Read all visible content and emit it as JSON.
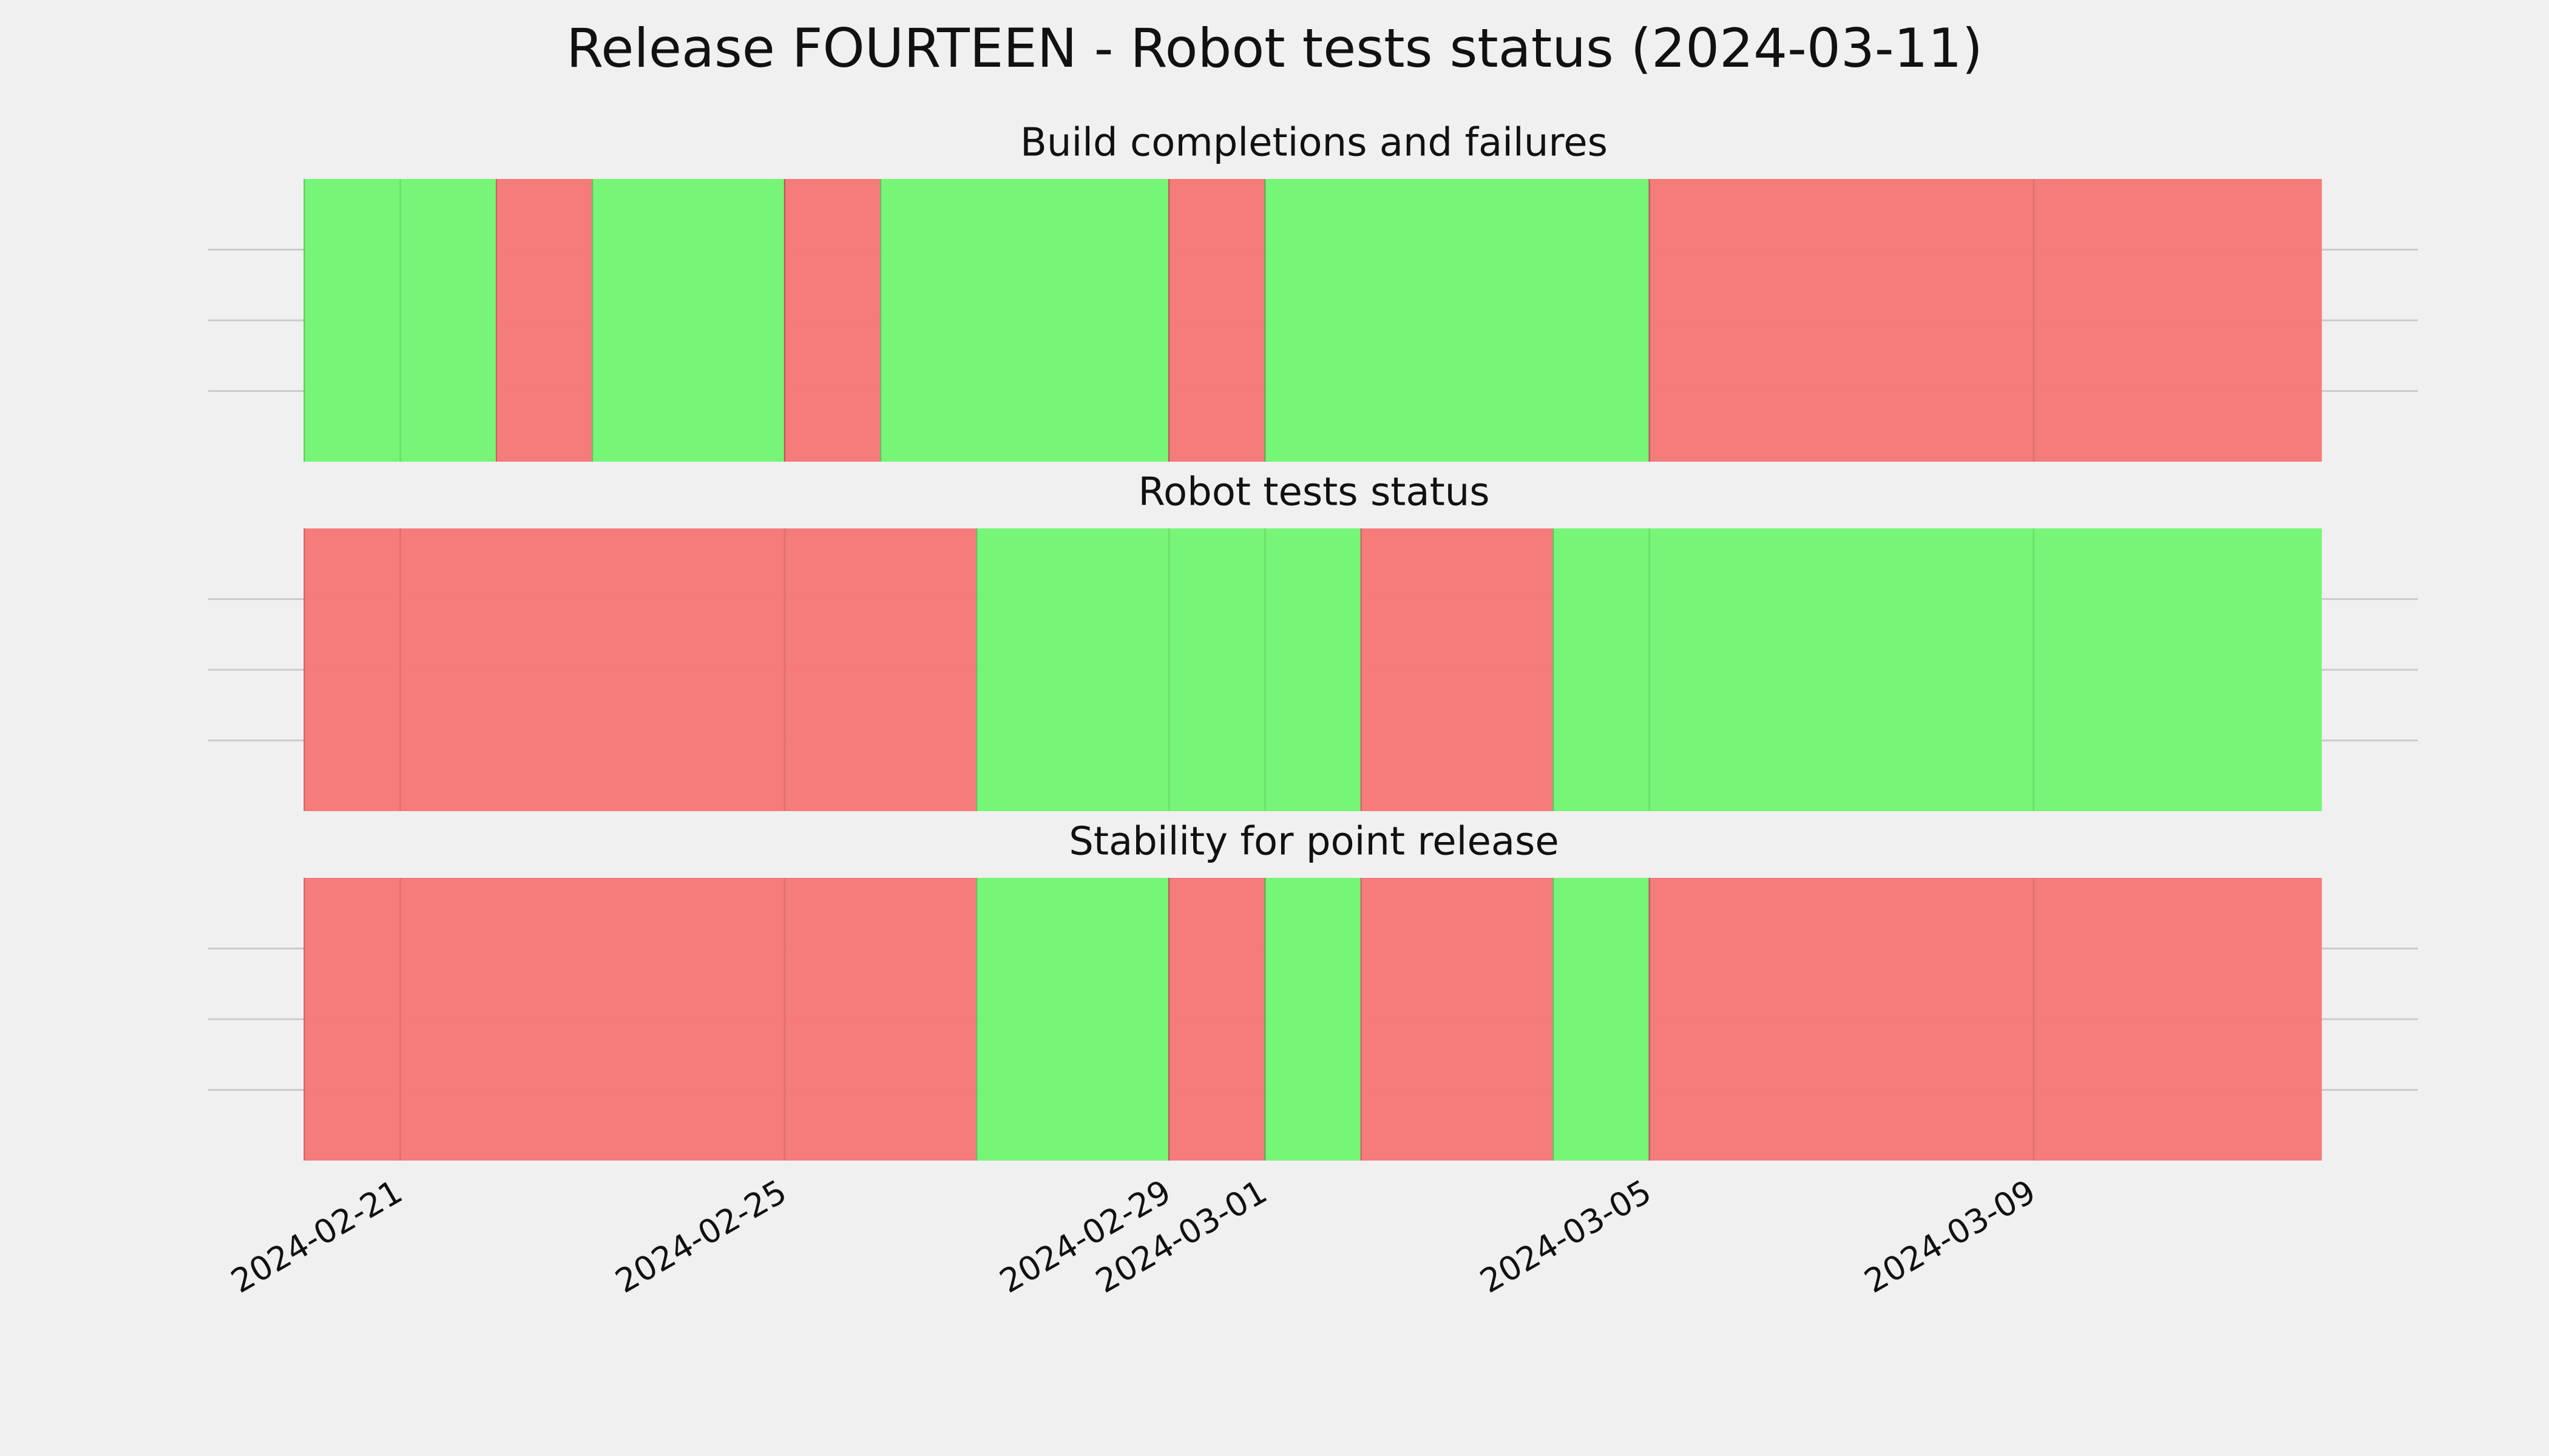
{
  "title": "Release FOURTEEN - Robot tests status (2024-03-11)",
  "chart_data": [
    {
      "type": "timeline",
      "title": "Build completions and failures",
      "x": [
        "2024-02-20",
        "2024-02-22",
        "2024-02-23",
        "2024-02-25",
        "2024-02-26",
        "2024-02-29",
        "2024-03-01",
        "2024-03-05",
        "2024-03-12"
      ],
      "colors": [
        "#74f574",
        "#f67878",
        "#74f574",
        "#f67878",
        "#74f574",
        "#f67878",
        "#74f574",
        "#f67878"
      ],
      "xlim": [
        "2024-02-19",
        "2024-03-13"
      ],
      "xticks": [
        "2024-02-21",
        "2024-02-25",
        "2024-02-29",
        "2024-03-01",
        "2024-03-05",
        "2024-03-09"
      ],
      "ylim": [
        0,
        1
      ],
      "yticks": [
        0.25,
        0.5,
        0.75
      ],
      "grid": true
    },
    {
      "type": "timeline",
      "title": "Robot tests status",
      "x": [
        "2024-02-20",
        "2024-02-27",
        "2024-03-02",
        "2024-03-04",
        "2024-03-12"
      ],
      "colors": [
        "#f67878",
        "#74f574",
        "#f67878",
        "#74f574"
      ],
      "xlim": [
        "2024-02-19",
        "2024-03-13"
      ],
      "xticks": [
        "2024-02-21",
        "2024-02-25",
        "2024-02-29",
        "2024-03-01",
        "2024-03-05",
        "2024-03-09"
      ],
      "ylim": [
        0,
        1
      ],
      "yticks": [
        0.25,
        0.5,
        0.75
      ],
      "grid": true
    },
    {
      "type": "timeline",
      "title": "Stability for point release",
      "x": [
        "2024-02-20",
        "2024-02-27",
        "2024-02-29",
        "2024-03-01",
        "2024-03-02",
        "2024-03-04",
        "2024-03-05",
        "2024-03-12"
      ],
      "colors": [
        "#f67878",
        "#74f574",
        "#f67878",
        "#74f574",
        "#f67878",
        "#74f574",
        "#f67878"
      ],
      "xlim": [
        "2024-02-19",
        "2024-03-13"
      ],
      "xticks": [
        "2024-02-21",
        "2024-02-25",
        "2024-02-29",
        "2024-03-01",
        "2024-03-05",
        "2024-03-09"
      ],
      "ylim": [
        0,
        1
      ],
      "yticks": [
        0.25,
        0.5,
        0.75
      ],
      "grid": true,
      "show_xtick_labels": true
    }
  ]
}
